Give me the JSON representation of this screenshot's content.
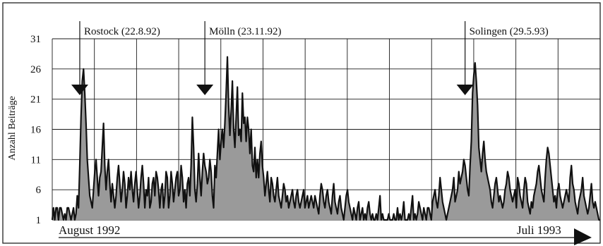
{
  "chart_data": {
    "type": "area",
    "ylabel": "Anzahl Beiträge",
    "ylim": [
      1,
      31
    ],
    "yticks": [
      "31",
      "26",
      "21",
      "16",
      "11",
      "6",
      "1"
    ],
    "grid": true,
    "period_start_label": "August 1992",
    "period_end_label": "Juli 1993",
    "x_vertical_grid_count": 13,
    "events": [
      {
        "label": "Rostock (22.8.92)",
        "index": 22
      },
      {
        "label": "Mölln (23.11.92)",
        "index": 122
      },
      {
        "label": "Solingen (29.5.93)",
        "index": 330
      }
    ],
    "series": [
      {
        "values": [
          1,
          3,
          1,
          3,
          3,
          1,
          3,
          3,
          2,
          1,
          2,
          1,
          3,
          3,
          2,
          1,
          2,
          3,
          1,
          2,
          5,
          3,
          10,
          18,
          24,
          26,
          22,
          17,
          11,
          8,
          5,
          4,
          3,
          6,
          9,
          11,
          8,
          5,
          8,
          9,
          13,
          17,
          10,
          6,
          9,
          11,
          7,
          4,
          7,
          5,
          3,
          5,
          8,
          10,
          7,
          4,
          6,
          9,
          7,
          3,
          5,
          8,
          6,
          9,
          6,
          4,
          7,
          9,
          6,
          3,
          5,
          8,
          10,
          7,
          3,
          6,
          5,
          8,
          3,
          4,
          7,
          8,
          5,
          9,
          8,
          6,
          3,
          6,
          7,
          3,
          5,
          9,
          8,
          3,
          5,
          9,
          7,
          4,
          6,
          8,
          9,
          5,
          6,
          10,
          8,
          4,
          6,
          3,
          7,
          8,
          5,
          10,
          18,
          13,
          6,
          4,
          7,
          12,
          8,
          5,
          9,
          12,
          10,
          9,
          7,
          8,
          11,
          9,
          5,
          3,
          10,
          8,
          12,
          16,
          11,
          14,
          16,
          13,
          17,
          22,
          28,
          20,
          15,
          19,
          24,
          16,
          13,
          18,
          23,
          15,
          16,
          14,
          22,
          17,
          18,
          14,
          18,
          16,
          12,
          16,
          10,
          9,
          13,
          8,
          11,
          8,
          12,
          14,
          10,
          8,
          5,
          7,
          9,
          6,
          4,
          8,
          7,
          5,
          4,
          6,
          8,
          5,
          4,
          3,
          5,
          7,
          6,
          4,
          5,
          3,
          4,
          5,
          6,
          4,
          3,
          5,
          6,
          4,
          3,
          4,
          5,
          6,
          3,
          4,
          5,
          3,
          4,
          5,
          4,
          3,
          5,
          4,
          3,
          2,
          5,
          7,
          6,
          4,
          3,
          5,
          6,
          4,
          3,
          2,
          5,
          7,
          4,
          3,
          2,
          4,
          5,
          3,
          2,
          1,
          3,
          5,
          6,
          4,
          3,
          2,
          1,
          3,
          2,
          1,
          3,
          4,
          1,
          2,
          3,
          1,
          2,
          1,
          3,
          4,
          2,
          1,
          2,
          1,
          1,
          2,
          1,
          3,
          5,
          1,
          2,
          1,
          1,
          1,
          1,
          2,
          1,
          1,
          1,
          2,
          1,
          1,
          3,
          1,
          2,
          1,
          2,
          4,
          1,
          1,
          1,
          2,
          1,
          3,
          5,
          1,
          2,
          1,
          2,
          4,
          3,
          2,
          1,
          3,
          2,
          1,
          3,
          3,
          2,
          1,
          4,
          5,
          6,
          4,
          3,
          5,
          8,
          6,
          4,
          3,
          2,
          1,
          2,
          3,
          4,
          5,
          6,
          8,
          4,
          5,
          6,
          9,
          7,
          8,
          9,
          11,
          10,
          8,
          6,
          5,
          10,
          14,
          22,
          25,
          27,
          24,
          20,
          13,
          11,
          9,
          12,
          14,
          11,
          9,
          8,
          7,
          6,
          4,
          3,
          5,
          7,
          8,
          6,
          4,
          5,
          4,
          3,
          4,
          6,
          7,
          9,
          8,
          6,
          5,
          4,
          5,
          6,
          3,
          8,
          7,
          5,
          4,
          3,
          6,
          8,
          7,
          4,
          3,
          2,
          4,
          3,
          5,
          6,
          7,
          9,
          10,
          8,
          6,
          5,
          4,
          8,
          11,
          13,
          12,
          10,
          8,
          6,
          4,
          5,
          3,
          6,
          7,
          5,
          4,
          3,
          4,
          5,
          6,
          5,
          4,
          8,
          10,
          7,
          6,
          4,
          3,
          2,
          4,
          5,
          6,
          8,
          5,
          4,
          3,
          2,
          3,
          5,
          7,
          4,
          3,
          4,
          3,
          2,
          1,
          1
        ]
      }
    ]
  }
}
